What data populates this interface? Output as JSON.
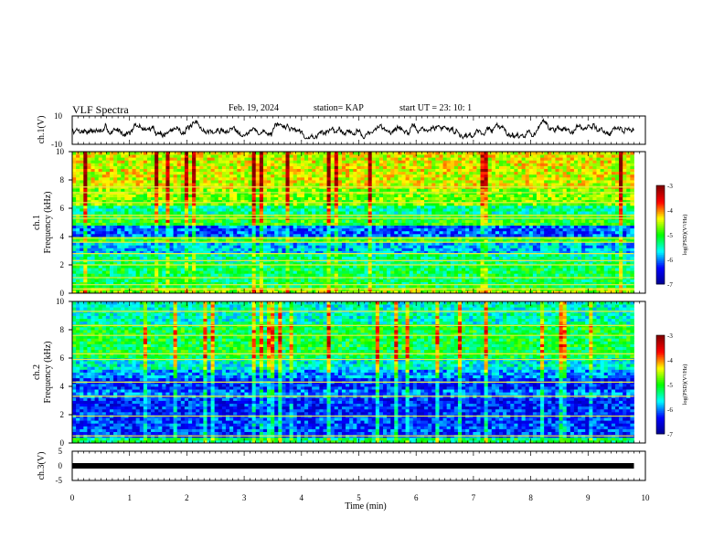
{
  "header": {
    "title": "VLF Spectra",
    "date": "Feb. 19, 2024",
    "station": "station= KAP",
    "start_ut": "start  UT =   23: 10: 1"
  },
  "chart_data": [
    {
      "type": "line",
      "panel": "ch1-waveform",
      "ylabel": "ch.1(V)",
      "ylim": [
        -10,
        10
      ],
      "yticks": [
        "10",
        "-10"
      ],
      "xlim": [
        0,
        10
      ],
      "summary": "noisy waveform fluctuating roughly between -6 and 8 V over 0-9.8 min",
      "series": [
        {
          "x": [
            0,
            9.8
          ],
          "y_range": [
            -6,
            8
          ]
        }
      ]
    },
    {
      "type": "heatmap",
      "panel": "ch1-spectrogram",
      "ylabel_line1": "ch.1",
      "ylabel_line2": "Frequency (kHz)",
      "ylim": [
        0,
        10
      ],
      "yticks": [
        "0",
        "2",
        "4",
        "6",
        "8",
        "10"
      ],
      "xlim": [
        0,
        10
      ],
      "data_end_min": 9.8,
      "colorbar": {
        "label": "log(PSD)(V²/Hz)",
        "range": [
          -7,
          -3
        ],
        "ticks": [
          "-3",
          "-4",
          "-5",
          "-6",
          "-7"
        ]
      },
      "bands": [
        {
          "from_khz": 0,
          "to_khz": 0.5,
          "level": -4.6
        },
        {
          "from_khz": 0.5,
          "to_khz": 2.2,
          "level": -5.2
        },
        {
          "from_khz": 2.2,
          "to_khz": 2.9,
          "level": -5.4
        },
        {
          "from_khz": 2.9,
          "to_khz": 3.6,
          "level": -5.8
        },
        {
          "from_khz": 3.6,
          "to_khz": 4.1,
          "level": -5.0
        },
        {
          "from_khz": 4.1,
          "to_khz": 4.9,
          "level": -6.1
        },
        {
          "from_khz": 4.9,
          "to_khz": 5.6,
          "level": -5.0
        },
        {
          "from_khz": 5.6,
          "to_khz": 6.2,
          "level": -5.4
        },
        {
          "from_khz": 6.2,
          "to_khz": 7.4,
          "level": -4.7
        },
        {
          "from_khz": 7.4,
          "to_khz": 10,
          "level": -4.4
        }
      ],
      "lines_khz": [
        0.3,
        0.6,
        1.1,
        2.0,
        2.3,
        2.8,
        3.6,
        3.9,
        5.3,
        5.5,
        6.4,
        7.1,
        7.5
      ]
    },
    {
      "type": "heatmap",
      "panel": "ch2-spectrogram",
      "ylabel_line1": "ch.2",
      "ylabel_line2": "Frequency (kHz)",
      "ylim": [
        0,
        10
      ],
      "yticks": [
        "0",
        "2",
        "4",
        "6",
        "8",
        "10"
      ],
      "xlim": [
        0,
        10
      ],
      "data_end_min": 9.8,
      "colorbar": {
        "label": "log(PSD)(V²/Hz)",
        "range": [
          -7,
          -3
        ],
        "ticks": [
          "-3",
          "-4",
          "-5",
          "-6",
          "-7"
        ]
      },
      "bands": [
        {
          "from_khz": 0,
          "to_khz": 0.5,
          "level": -5.2
        },
        {
          "from_khz": 0.5,
          "to_khz": 2.0,
          "level": -6.2
        },
        {
          "from_khz": 2.0,
          "to_khz": 3.2,
          "level": -6.3
        },
        {
          "from_khz": 3.2,
          "to_khz": 3.8,
          "level": -6.0
        },
        {
          "from_khz": 3.8,
          "to_khz": 4.6,
          "level": -6.3
        },
        {
          "from_khz": 4.6,
          "to_khz": 5.3,
          "level": -5.9
        },
        {
          "from_khz": 5.3,
          "to_khz": 6.0,
          "level": -5.6
        },
        {
          "from_khz": 6.0,
          "to_khz": 8.5,
          "level": -5.1
        },
        {
          "from_khz": 8.5,
          "to_khz": 10,
          "level": -5.5
        }
      ],
      "lines_khz": [
        0.5,
        1.9,
        3.3,
        4.3,
        5.9,
        6.3,
        7.6,
        8.3,
        9.3
      ]
    },
    {
      "type": "line",
      "panel": "ch3-waveform",
      "ylabel": "ch.3(V)",
      "ylim": [
        -5,
        5
      ],
      "yticks": [
        "5",
        "0",
        "-5"
      ],
      "xlim": [
        0,
        10
      ],
      "xticks": [
        "0",
        "1",
        "2",
        "3",
        "4",
        "5",
        "6",
        "7",
        "8",
        "9",
        "10"
      ],
      "xlabel": "Time (min)",
      "summary": "dense signal near 0 V filling a thin black band",
      "series": [
        {
          "x": [
            0,
            9.8
          ],
          "y": [
            0,
            0
          ]
        }
      ]
    }
  ],
  "colors": {
    "text": "#000000",
    "waveform": "#000000",
    "colormap": [
      "#00008f",
      "#0000ff",
      "#00ffff",
      "#00ff00",
      "#ffff00",
      "#ff0000",
      "#800000"
    ]
  }
}
